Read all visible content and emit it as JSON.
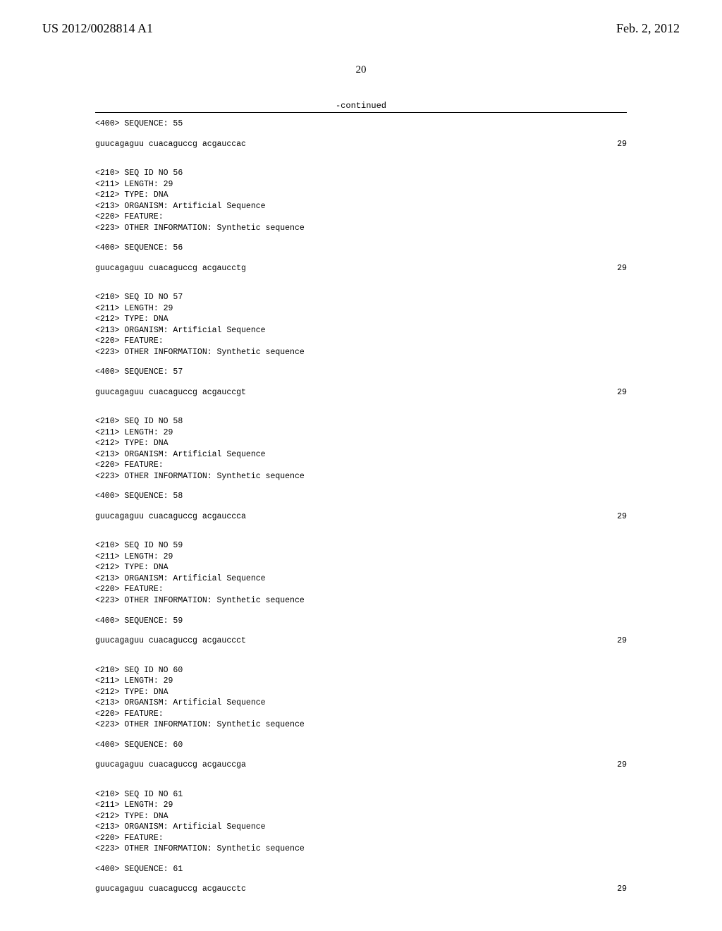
{
  "header": {
    "patent_number": "US 2012/0028814 A1",
    "date": "Feb. 2, 2012"
  },
  "page_number": "20",
  "continued_label": "-continued",
  "sequences": [
    {
      "seq_400": "<400> SEQUENCE: 55",
      "data": "guucagaguu cuacaguccg acgauccac",
      "length": "29"
    },
    {
      "seq_id": "<210> SEQ ID NO 56",
      "length_line": "<211> LENGTH: 29",
      "type_line": "<212> TYPE: DNA",
      "organism": "<213> ORGANISM: Artificial Sequence",
      "feature": "<220> FEATURE:",
      "other_info": "<223> OTHER INFORMATION: Synthetic sequence",
      "seq_400": "<400> SEQUENCE: 56",
      "data": "guucagaguu cuacaguccg acgaucctg",
      "length": "29"
    },
    {
      "seq_id": "<210> SEQ ID NO 57",
      "length_line": "<211> LENGTH: 29",
      "type_line": "<212> TYPE: DNA",
      "organism": "<213> ORGANISM: Artificial Sequence",
      "feature": "<220> FEATURE:",
      "other_info": "<223> OTHER INFORMATION: Synthetic sequence",
      "seq_400": "<400> SEQUENCE: 57",
      "data": "guucagaguu cuacaguccg acgauccgt",
      "length": "29"
    },
    {
      "seq_id": "<210> SEQ ID NO 58",
      "length_line": "<211> LENGTH: 29",
      "type_line": "<212> TYPE: DNA",
      "organism": "<213> ORGANISM: Artificial Sequence",
      "feature": "<220> FEATURE:",
      "other_info": "<223> OTHER INFORMATION: Synthetic sequence",
      "seq_400": "<400> SEQUENCE: 58",
      "data": "guucagaguu cuacaguccg acgauccca",
      "length": "29"
    },
    {
      "seq_id": "<210> SEQ ID NO 59",
      "length_line": "<211> LENGTH: 29",
      "type_line": "<212> TYPE: DNA",
      "organism": "<213> ORGANISM: Artificial Sequence",
      "feature": "<220> FEATURE:",
      "other_info": "<223> OTHER INFORMATION: Synthetic sequence",
      "seq_400": "<400> SEQUENCE: 59",
      "data": "guucagaguu cuacaguccg acgauccct",
      "length": "29"
    },
    {
      "seq_id": "<210> SEQ ID NO 60",
      "length_line": "<211> LENGTH: 29",
      "type_line": "<212> TYPE: DNA",
      "organism": "<213> ORGANISM: Artificial Sequence",
      "feature": "<220> FEATURE:",
      "other_info": "<223> OTHER INFORMATION: Synthetic sequence",
      "seq_400": "<400> SEQUENCE: 60",
      "data": "guucagaguu cuacaguccg acgauccga",
      "length": "29"
    },
    {
      "seq_id": "<210> SEQ ID NO 61",
      "length_line": "<211> LENGTH: 29",
      "type_line": "<212> TYPE: DNA",
      "organism": "<213> ORGANISM: Artificial Sequence",
      "feature": "<220> FEATURE:",
      "other_info": "<223> OTHER INFORMATION: Synthetic sequence",
      "seq_400": "<400> SEQUENCE: 61",
      "data": "guucagaguu cuacaguccg acgaucctc",
      "length": "29"
    }
  ]
}
